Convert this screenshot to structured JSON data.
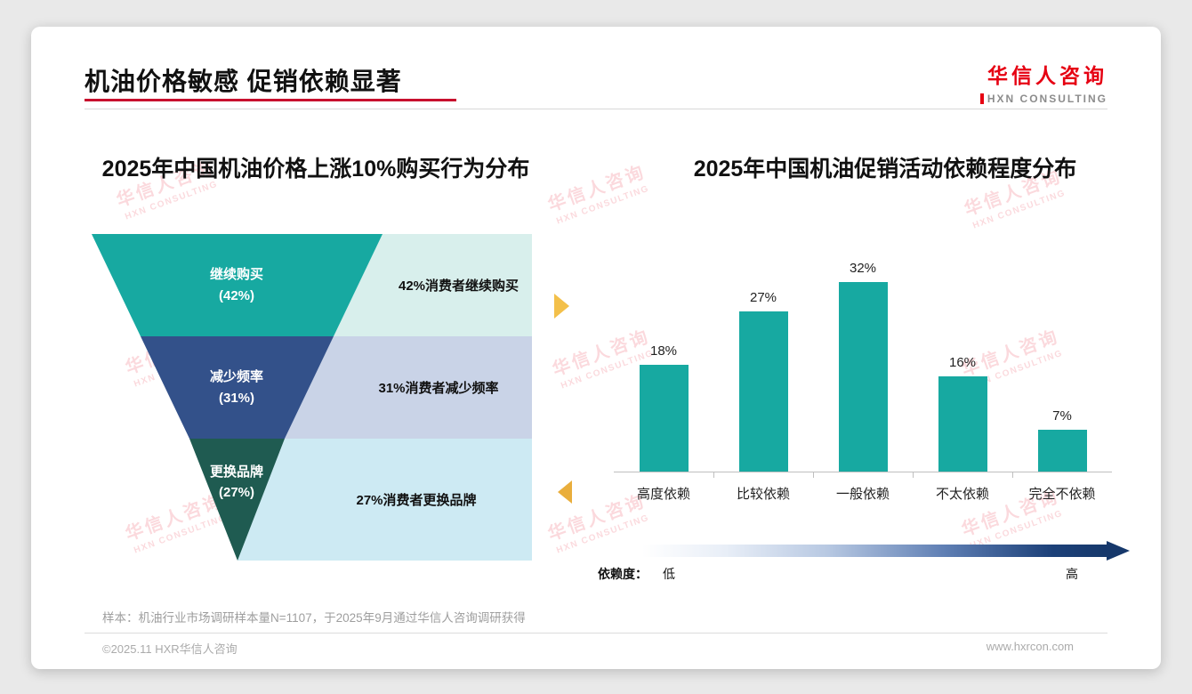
{
  "page": {
    "title": "机油价格敏感 促销依赖显著",
    "logo": {
      "name": "华信人咨询",
      "sub": "HXN CONSULTING"
    },
    "watermark": {
      "line1": "华信人咨询",
      "line2": "HXN CONSULTING"
    },
    "footnote": "样本：机油行业市场调研样本量N=1107，于2025年9月通过华信人咨询调研获得",
    "copyright": "©2025.11 HXR华信人咨询",
    "website": "www.hxrcon.com",
    "colors": {
      "accent_red": "#E60012",
      "teal": "#17A9A1",
      "navy": "#33518A",
      "dark_green": "#1F5B51"
    }
  },
  "chart_data": [
    {
      "type": "funnel",
      "title": "2025年中国机油价格上涨10%购买行为分布",
      "categories": [
        "继续购买",
        "减少频率",
        "更换品牌"
      ],
      "values": [
        42,
        31,
        27
      ],
      "pct_labels": [
        "(42%)",
        "(31%)",
        "(27%)"
      ],
      "annotations": [
        "42%消费者继续购买",
        "31%消费者减少频率",
        "27%消费者更换品牌"
      ],
      "colors": [
        "#17A9A1",
        "#33518A",
        "#1F5B51"
      ],
      "box_colors": [
        "#D8EFEC",
        "#C9D3E7",
        "#CDEAF3"
      ]
    },
    {
      "type": "bar",
      "title": "2025年中国机油促销活动依赖程度分布",
      "categories": [
        "高度依赖",
        "比较依赖",
        "一般依赖",
        "不太依赖",
        "完全不依赖"
      ],
      "values": [
        18,
        27,
        32,
        16,
        7
      ],
      "value_labels": [
        "18%",
        "27%",
        "32%",
        "16%",
        "7%"
      ],
      "ylim": [
        0,
        36
      ],
      "bar_color": "#17A9A1",
      "dependency_axis": {
        "label": "依赖度：",
        "low": "低",
        "high": "高"
      }
    }
  ]
}
